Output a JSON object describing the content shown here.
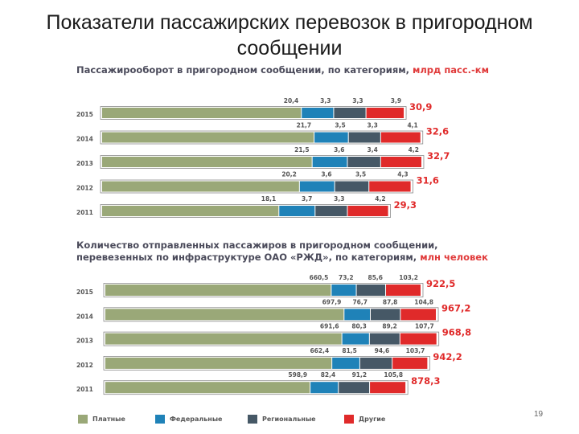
{
  "slide": {
    "title_line1": "Показатели пассажирских перевозок в пригородном",
    "title_line2": "сообщении",
    "page_number": "19"
  },
  "legend": [
    {
      "label": "Платные",
      "color": "#9aa878"
    },
    {
      "label": "Федеральные",
      "color": "#1f82b8"
    },
    {
      "label": "Региональные",
      "color": "#465866"
    },
    {
      "label": "Другие",
      "color": "#e02a2a"
    }
  ],
  "chart_data": [
    {
      "type": "bar",
      "stacked": true,
      "orientation": "horizontal",
      "title": "Пассажирооборот в пригородном сообщении, по категориям,",
      "unit": "млрд пасс.-км",
      "categories": [
        "2015",
        "2014",
        "2013",
        "2012",
        "2011"
      ],
      "series": [
        {
          "name": "Платные",
          "values": [
            "20,4",
            "21,7",
            "21,5",
            "20,2",
            "18,1"
          ]
        },
        {
          "name": "Федеральные",
          "values": [
            "3,3",
            "3,5",
            "3,6",
            "3,6",
            "3,7"
          ]
        },
        {
          "name": "Региональные",
          "values": [
            "3,3",
            "3,3",
            "3,4",
            "3,5",
            "3,3"
          ]
        },
        {
          "name": "Другие",
          "values": [
            "3,9",
            "4,1",
            "4,2",
            "4,3",
            "4,2"
          ]
        }
      ],
      "totals": [
        "30,9",
        "32,6",
        "32,7",
        "31,6",
        "29,3"
      ]
    },
    {
      "type": "bar",
      "stacked": true,
      "orientation": "horizontal",
      "title": "Количество отправленных пассажиров в пригородном сообщении,",
      "title_line2": "перевезенных по инфраструктуре ОАО «РЖД», по категориям,",
      "unit": "млн человек",
      "categories": [
        "2015",
        "2014",
        "2013",
        "2012",
        "2011"
      ],
      "series": [
        {
          "name": "Платные",
          "values": [
            "660,5",
            "697,9",
            "691,6",
            "662,4",
            "598,9"
          ]
        },
        {
          "name": "Федеральные",
          "values": [
            "73,2",
            "76,7",
            "80,3",
            "81,5",
            "82,4"
          ]
        },
        {
          "name": "Региональные",
          "values": [
            "85,6",
            "87,8",
            "89,2",
            "94,6",
            "91,2"
          ]
        },
        {
          "name": "Другие",
          "values": [
            "103,2",
            "104,8",
            "107,7",
            "103,7",
            "105,8"
          ]
        }
      ],
      "totals": [
        "922,5",
        "967,2",
        "968,8",
        "942,2",
        "878,3"
      ]
    }
  ]
}
